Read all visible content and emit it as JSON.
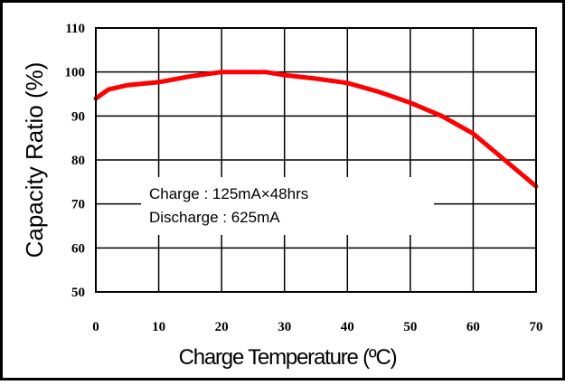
{
  "chart_data": {
    "type": "line",
    "title": "",
    "xlabel": "Charge Temperature (ºC)",
    "ylabel": "Capacity Ratio (%)",
    "xlim": [
      0,
      70
    ],
    "ylim": [
      50,
      110
    ],
    "x_ticks": [
      "0",
      "10",
      "20",
      "30",
      "40",
      "50",
      "60",
      "70"
    ],
    "y_ticks": [
      "110",
      "100",
      "90",
      "80",
      "70",
      "60",
      "50"
    ],
    "grid": true,
    "series": [
      {
        "color": "#ff0000",
        "x": [
          0,
          2,
          5,
          10,
          15,
          20,
          25,
          27,
          30,
          35,
          40,
          45,
          50,
          55,
          60,
          65,
          70
        ],
        "y": [
          94,
          96,
          97,
          97.7,
          99,
          100,
          100,
          100,
          99.3,
          98.5,
          97.5,
          95.5,
          93,
          90,
          86,
          80,
          74
        ]
      }
    ],
    "annotations": [
      "Charge : 125mA×48hrs",
      "Discharge : 625mA"
    ]
  }
}
